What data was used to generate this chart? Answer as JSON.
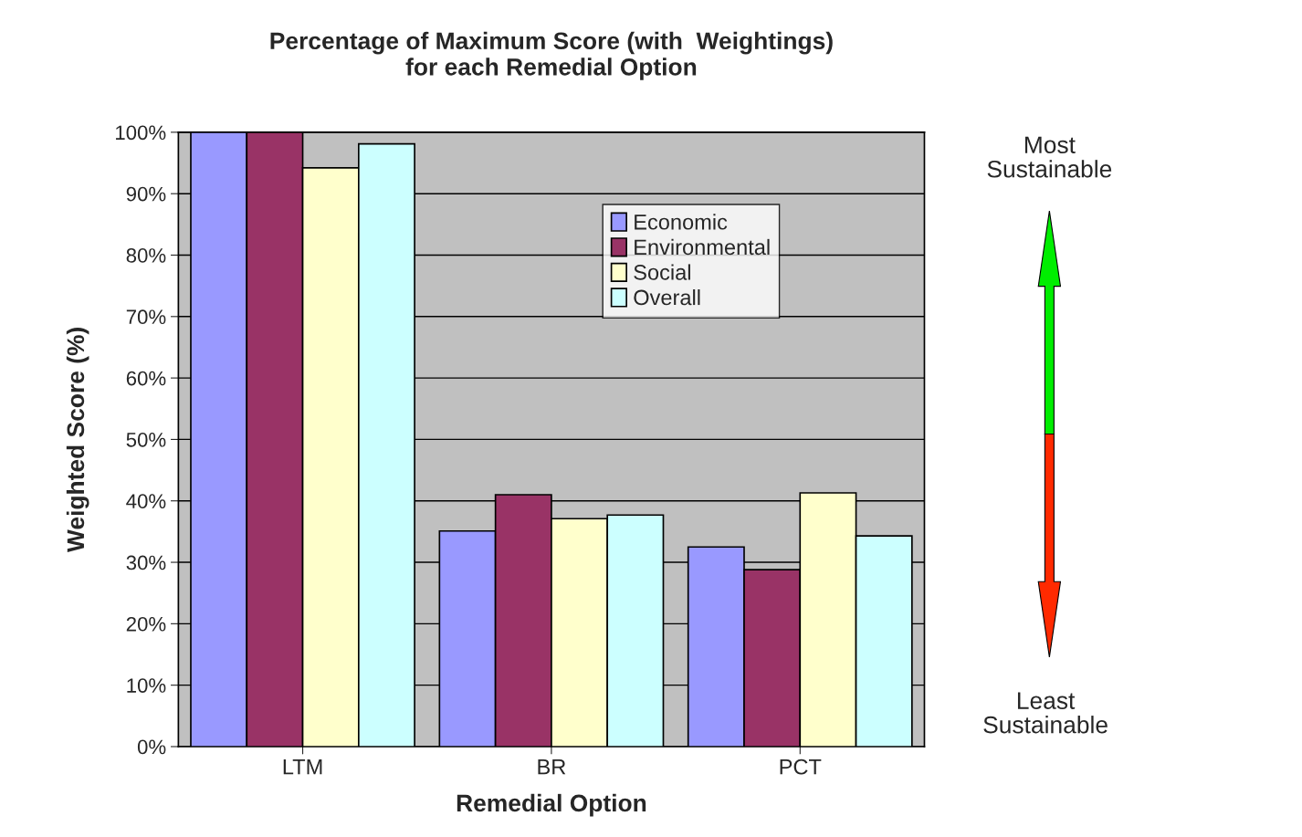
{
  "chart_data": {
    "type": "bar",
    "title": "Percentage of Maximum Score (with  Weightings)\nfor each Remedial Option",
    "xlabel": "Remedial Option",
    "ylabel": "Weighted Score (%)",
    "categories": [
      "LTM",
      "BR",
      "PCT"
    ],
    "series": [
      {
        "name": "Economic",
        "color": "#9999ff",
        "values": [
          100,
          35.1,
          32.5
        ]
      },
      {
        "name": "Environmental",
        "color": "#993366",
        "values": [
          100,
          41.0,
          28.8
        ]
      },
      {
        "name": "Social",
        "color": "#ffffcc",
        "values": [
          94.2,
          37.1,
          41.3
        ]
      },
      {
        "name": "Overall",
        "color": "#ccffff",
        "values": [
          98.1,
          37.7,
          34.3
        ]
      }
    ],
    "ylim": [
      0,
      100
    ],
    "yticks": [
      {
        "value": 0,
        "label": "0%"
      },
      {
        "value": 10,
        "label": "10%"
      },
      {
        "value": 20,
        "label": "20%"
      },
      {
        "value": 30,
        "label": "30%"
      },
      {
        "value": 40,
        "label": "40%"
      },
      {
        "value": 50,
        "label": "50%"
      },
      {
        "value": 60,
        "label": "60%"
      },
      {
        "value": 70,
        "label": "70%"
      },
      {
        "value": 80,
        "label": "80%"
      },
      {
        "value": 90,
        "label": "90%"
      },
      {
        "value": 100,
        "label": "100%"
      }
    ],
    "grid": "y",
    "legend": "top right",
    "annotations": [
      "Most\nSustainable",
      "Least\nSustainable"
    ]
  }
}
